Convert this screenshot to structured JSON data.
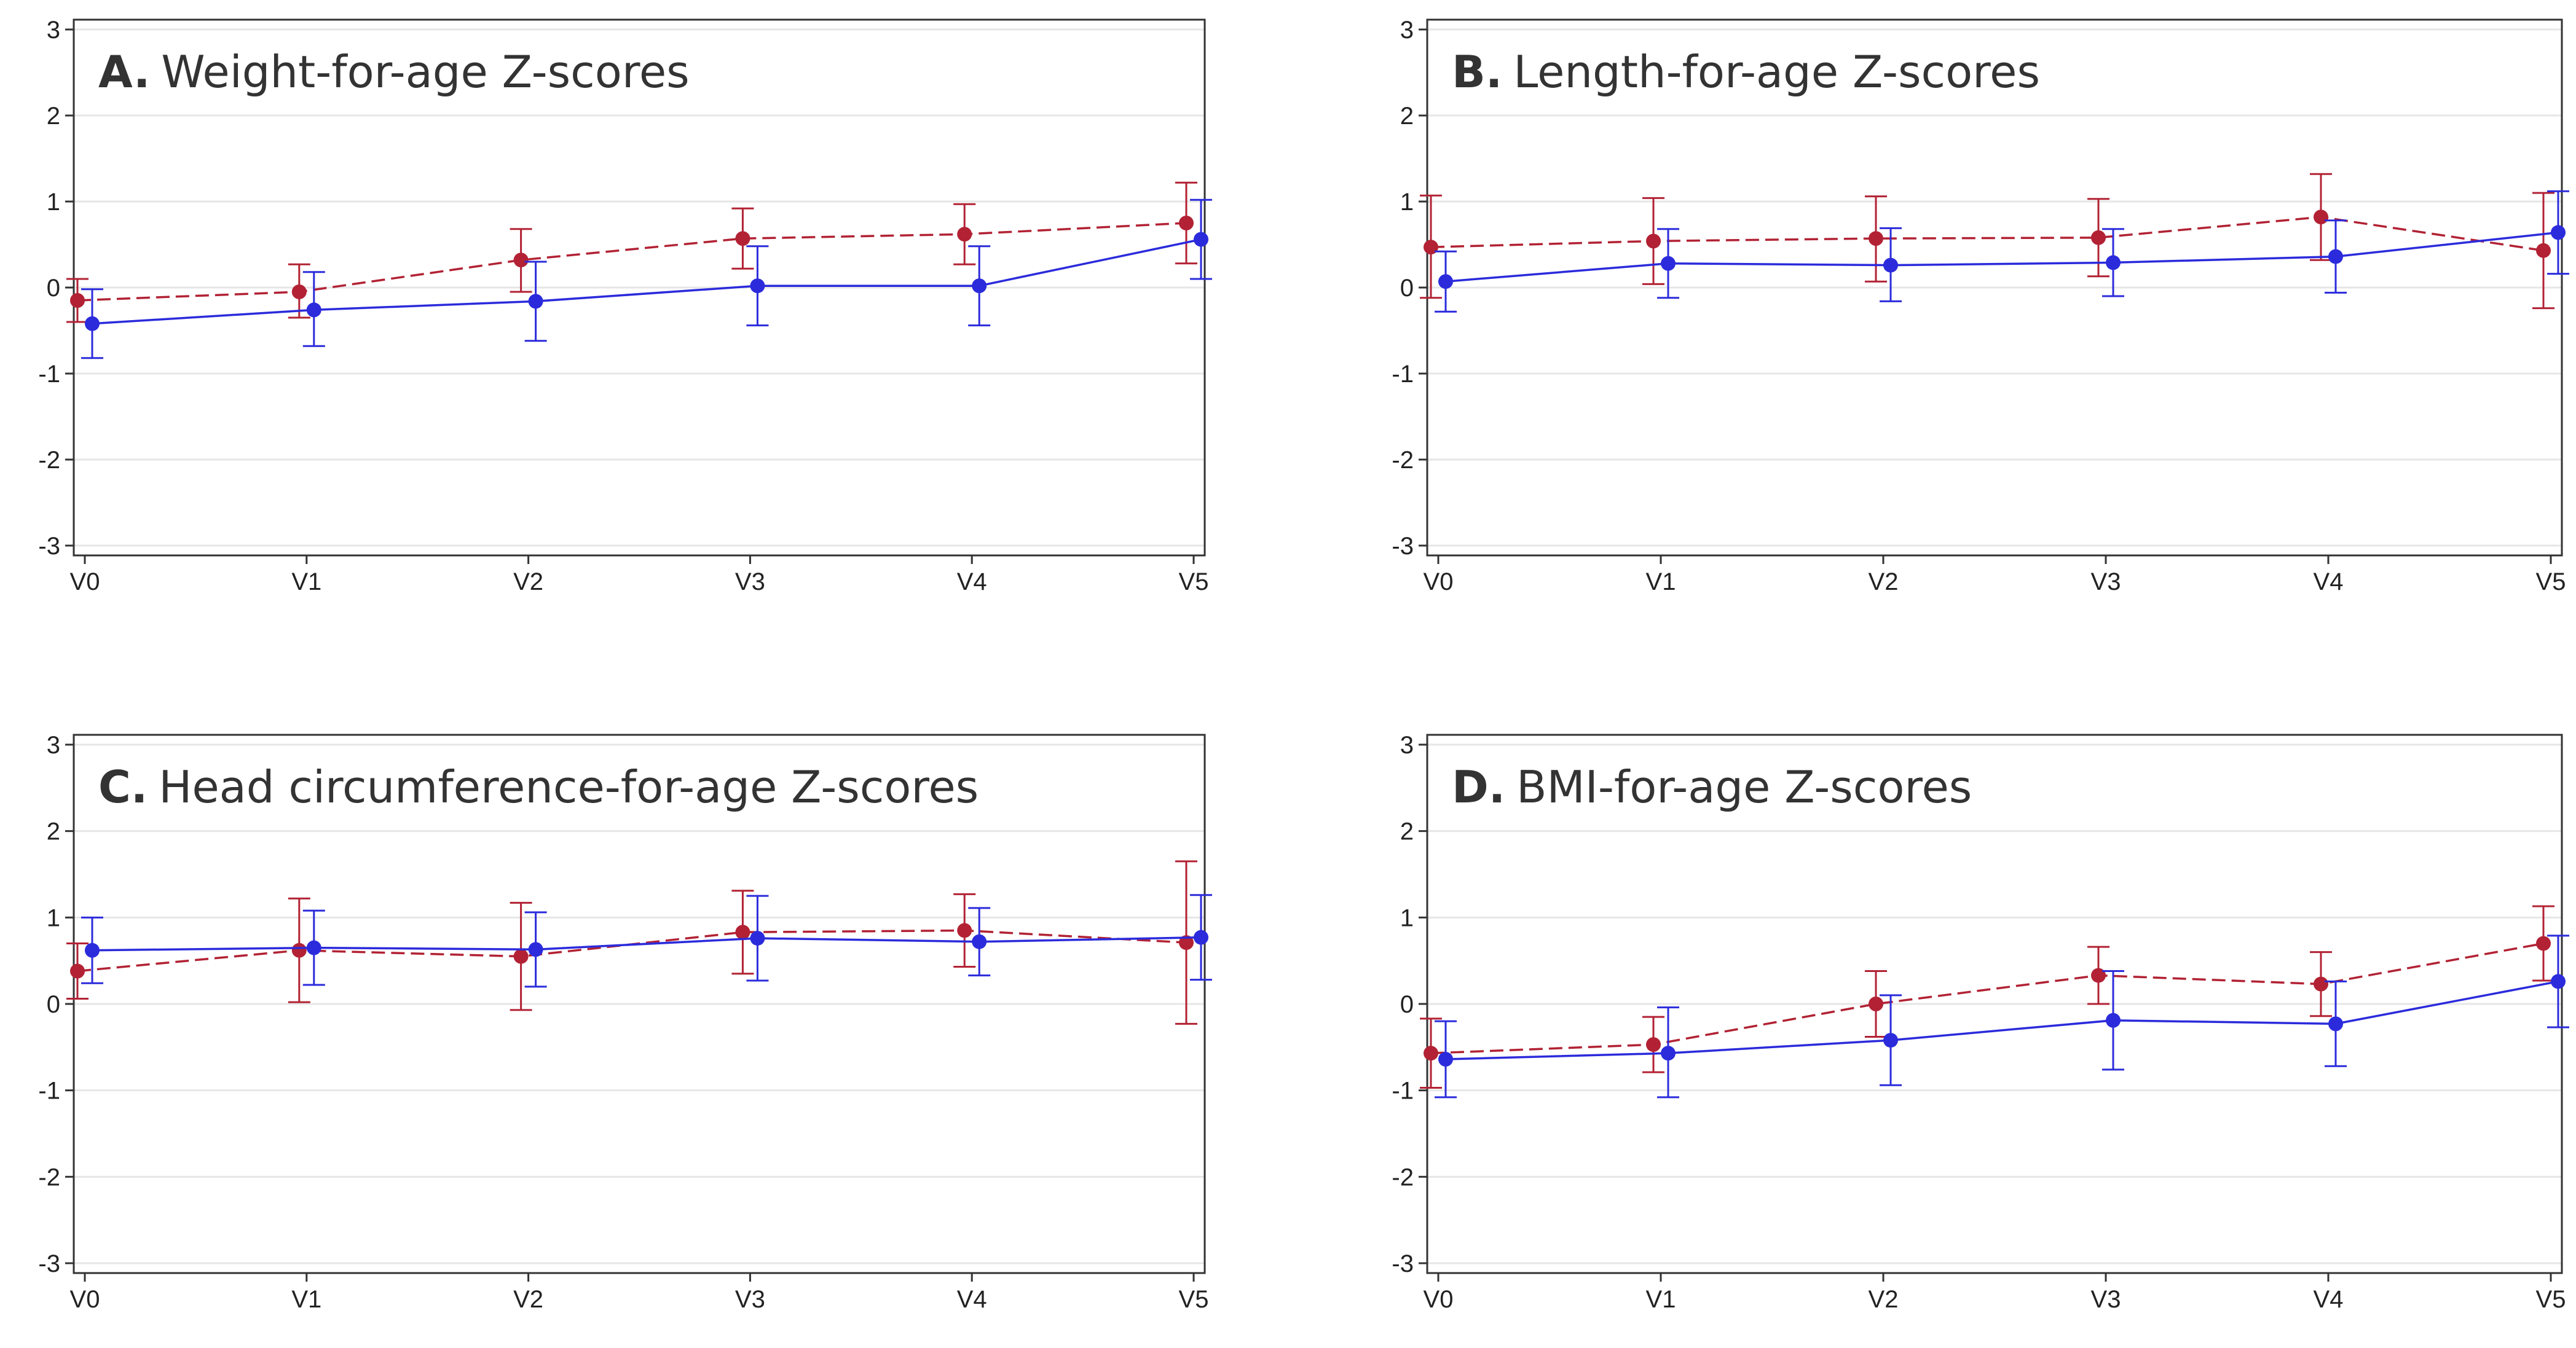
{
  "colors": {
    "red_series": "#b22234",
    "blue_series": "#2b2bdc",
    "grid": "#e6e6e6",
    "axis": "#333333"
  },
  "chart_data": [
    {
      "type": "line",
      "panel": "A",
      "letter": "A.",
      "title": "Weight-for-age Z-scores",
      "categories": [
        "V0",
        "V1",
        "V2",
        "V3",
        "V4",
        "V5"
      ],
      "yticks": [
        "-3",
        "-2",
        "-1",
        "0",
        "1",
        "2",
        "3"
      ],
      "ylim": [
        -3,
        3
      ],
      "series": [
        {
          "name": "red (dashed)",
          "style": "dashed",
          "values": [
            -0.15,
            -0.05,
            0.32,
            0.57,
            0.62,
            0.75
          ],
          "lower": [
            -0.4,
            -0.35,
            -0.05,
            0.22,
            0.27,
            0.28
          ],
          "upper": [
            0.1,
            0.27,
            0.68,
            0.92,
            0.97,
            1.22
          ]
        },
        {
          "name": "blue (solid)",
          "style": "solid",
          "values": [
            -0.42,
            -0.26,
            -0.16,
            0.02,
            0.02,
            0.56
          ],
          "lower": [
            -0.82,
            -0.68,
            -0.62,
            -0.44,
            -0.44,
            0.1
          ],
          "upper": [
            -0.02,
            0.18,
            0.3,
            0.48,
            0.48,
            1.02
          ]
        }
      ]
    },
    {
      "type": "line",
      "panel": "B",
      "letter": "B.",
      "title": "Length-for-age Z-scores",
      "categories": [
        "V0",
        "V1",
        "V2",
        "V3",
        "V4",
        "V5"
      ],
      "yticks": [
        "-3",
        "-2",
        "-1",
        "0",
        "1",
        "2",
        "3"
      ],
      "ylim": [
        -3,
        3
      ],
      "series": [
        {
          "name": "red (dashed)",
          "style": "dashed",
          "values": [
            0.47,
            0.54,
            0.57,
            0.58,
            0.82,
            0.43
          ],
          "lower": [
            -0.12,
            0.04,
            0.07,
            0.13,
            0.32,
            -0.24
          ],
          "upper": [
            1.07,
            1.04,
            1.06,
            1.03,
            1.32,
            1.1
          ]
        },
        {
          "name": "blue (solid)",
          "style": "solid",
          "values": [
            0.07,
            0.28,
            0.26,
            0.29,
            0.36,
            0.64
          ],
          "lower": [
            -0.28,
            -0.12,
            -0.16,
            -0.1,
            -0.06,
            0.16
          ],
          "upper": [
            0.42,
            0.68,
            0.69,
            0.68,
            0.78,
            1.12
          ]
        }
      ]
    },
    {
      "type": "line",
      "panel": "C",
      "letter": "C.",
      "title": "Head circumference-for-age Z-scores",
      "categories": [
        "V0",
        "V1",
        "V2",
        "V3",
        "V4",
        "V5"
      ],
      "yticks": [
        "-3",
        "-2",
        "-1",
        "0",
        "1",
        "2",
        "3"
      ],
      "ylim": [
        -3,
        3
      ],
      "series": [
        {
          "name": "red (dashed)",
          "style": "dashed",
          "values": [
            0.38,
            0.62,
            0.55,
            0.83,
            0.85,
            0.71
          ],
          "lower": [
            0.06,
            0.02,
            -0.07,
            0.35,
            0.43,
            -0.23
          ],
          "upper": [
            0.7,
            1.22,
            1.17,
            1.31,
            1.27,
            1.65
          ]
        },
        {
          "name": "blue (solid)",
          "style": "solid",
          "values": [
            0.62,
            0.65,
            0.63,
            0.76,
            0.72,
            0.77
          ],
          "lower": [
            0.24,
            0.22,
            0.2,
            0.27,
            0.33,
            0.28
          ],
          "upper": [
            1.0,
            1.08,
            1.06,
            1.25,
            1.11,
            1.26
          ]
        }
      ]
    },
    {
      "type": "line",
      "panel": "D",
      "letter": "D.",
      "title": "BMI-for-age Z-scores",
      "categories": [
        "V0",
        "V1",
        "V2",
        "V3",
        "V4",
        "V5"
      ],
      "yticks": [
        "-3",
        "-2",
        "-1",
        "0",
        "1",
        "2",
        "3"
      ],
      "ylim": [
        -3,
        3
      ],
      "series": [
        {
          "name": "red (dashed)",
          "style": "dashed",
          "values": [
            -0.57,
            -0.47,
            0.0,
            0.33,
            0.23,
            0.7
          ],
          "lower": [
            -0.97,
            -0.79,
            -0.38,
            0.0,
            -0.14,
            0.27
          ],
          "upper": [
            -0.17,
            -0.15,
            0.38,
            0.66,
            0.6,
            1.13
          ]
        },
        {
          "name": "blue (solid)",
          "style": "solid",
          "values": [
            -0.64,
            -0.57,
            -0.42,
            -0.19,
            -0.23,
            0.26
          ],
          "lower": [
            -1.08,
            -1.08,
            -0.94,
            -0.76,
            -0.72,
            -0.27
          ],
          "upper": [
            -0.2,
            -0.04,
            0.1,
            0.38,
            0.26,
            0.79
          ]
        }
      ]
    }
  ]
}
